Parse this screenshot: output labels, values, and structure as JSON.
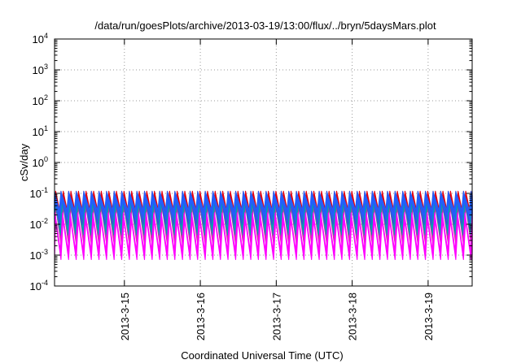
{
  "chart_data": {
    "type": "line",
    "title": "/data/run/goesPlots/archive/2013-03-19/13:00/flux/../bryn/5daysMars.plot",
    "xlabel": "Coordinated Universal Time (UTC)",
    "ylabel": "cSv/day",
    "yscale": "log",
    "ylim_exponents": [
      -4,
      4
    ],
    "ytick_base": "10",
    "ytick_exponents": [
      "-4",
      "-3",
      "-2",
      "-1",
      "0",
      "1",
      "2",
      "3",
      "4"
    ],
    "xtick_labels": [
      "2013-3-15",
      "2013-3-16",
      "2013-3-17",
      "2013-3-18",
      "2013-3-19"
    ],
    "xlim_days": [
      14.08,
      19.58
    ],
    "xtick_days": [
      15,
      16,
      17,
      18,
      19
    ],
    "grid": true,
    "pattern": {
      "type": "sawtooth",
      "cycles_per_day": 10,
      "start_day": 14.08,
      "end_day": 19.58
    },
    "series": [
      {
        "color": "#e3000f",
        "log_peak": -1.05,
        "log_min": -1.95,
        "phase": 0.05
      },
      {
        "color": "#cc3399",
        "log_peak": -1.3,
        "log_min": -2.55,
        "phase": 0.12
      },
      {
        "color": "#00a0b0",
        "log_peak": -1.2,
        "log_min": -2.2,
        "phase": 0.2
      },
      {
        "color": "#3b4ed8",
        "log_peak": -1.05,
        "log_min": -1.85,
        "phase": 0.35
      },
      {
        "color": "#2060ff",
        "log_peak": -1.1,
        "log_min": -1.7,
        "phase": 0.3
      },
      {
        "color": "#ff00ff",
        "log_peak": -1.75,
        "log_min": -3.0,
        "phase": 0.15
      }
    ]
  }
}
